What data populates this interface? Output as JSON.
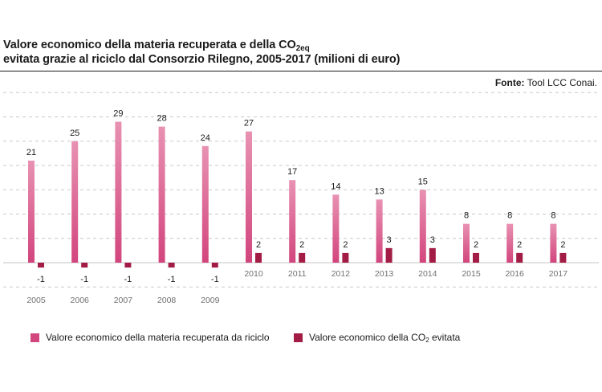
{
  "title": {
    "line1_before": "Valore economico della materia recuperata e della CO",
    "line1_sub": "2eq",
    "line2": "evitata grazie al riciclo dal Consorzio Rilegno, 2005-2017 (milioni di euro)"
  },
  "source": {
    "label": "Fonte:",
    "value": "Tool LCC Conai."
  },
  "legend": {
    "item1": "Valore economico della materia recuperata da riciclo",
    "item2_before": "Valore economico della CO",
    "item2_sub": "2",
    "item2_after": " evitata"
  },
  "colors": {
    "series1_top": "#e892b2",
    "series1_bottom": "#d2457d",
    "series2": "#a31c45",
    "grid": "#c8c8c8",
    "zero_line": "#d9d9d9"
  },
  "chart_data": {
    "type": "bar",
    "categories": [
      "2005",
      "2006",
      "2007",
      "2008",
      "2009",
      "2010",
      "2011",
      "2012",
      "2013",
      "2014",
      "2015",
      "2016",
      "2017"
    ],
    "series": [
      {
        "name": "Valore economico della materia recuperata da riciclo",
        "values": [
          21,
          25,
          29,
          28,
          24,
          27,
          17,
          14,
          13,
          15,
          8,
          8,
          8
        ]
      },
      {
        "name": "Valore economico della CO2 evitata",
        "values": [
          -1,
          -1,
          -1,
          -1,
          -1,
          2,
          2,
          2,
          3,
          3,
          2,
          2,
          2
        ]
      }
    ],
    "ylim": [
      -5,
      35
    ],
    "grid": true,
    "legend_position": "bottom-left"
  }
}
